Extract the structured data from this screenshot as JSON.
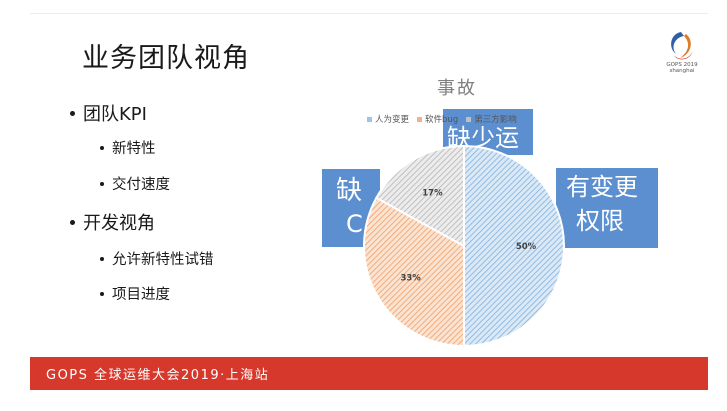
{
  "slide": {
    "title": "业务团队视角",
    "bullets": [
      {
        "text": "团队KPI",
        "level": 1
      },
      {
        "text": "新特性",
        "level": 2
      },
      {
        "text": "交付速度",
        "level": 2
      },
      {
        "text": "开发视角",
        "level": 1
      },
      {
        "text": "允许新特性试错",
        "level": 2
      },
      {
        "text": "项目进度",
        "level": 2
      }
    ]
  },
  "logo": {
    "name": "GOPS 2019 Shanghai logo",
    "line1": "GOPS 2019",
    "line2": "shanghai"
  },
  "callouts": {
    "top": "缺少运",
    "left_line1": "缺",
    "left_line2": "C",
    "right_line1": "有变更",
    "right_line2": "权限"
  },
  "chart_data": {
    "type": "pie",
    "title": "事故",
    "categories": [
      "人为变更",
      "软件bug",
      "第三方影响"
    ],
    "values": [
      50,
      33,
      17
    ],
    "data_labels": [
      "50%",
      "33%",
      "17%"
    ],
    "colors": [
      "#9dc3e6",
      "#f4b183",
      "#bfbfbf"
    ],
    "legend_position": "top"
  },
  "footer": {
    "text": "GOPS 全球运维大会2019·上海站"
  },
  "colors": {
    "footer_bg": "#d6382c",
    "callout_bg": "#5b8fd0"
  }
}
